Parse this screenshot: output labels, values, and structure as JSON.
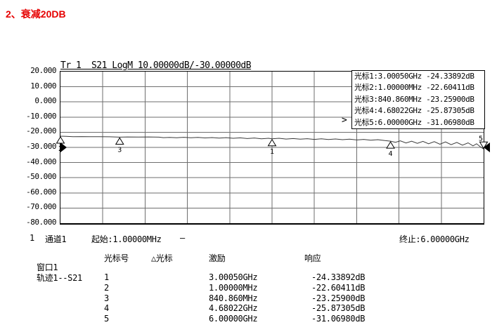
{
  "page_title": {
    "text": "2、衰减20DB",
    "color": "#e60000"
  },
  "trace_header": "Tr 1  S21 LogM 10.00000dB/-30.00000dB",
  "marker_readout": {
    "active_arrow": ">",
    "lines": [
      "光标1:3.00050GHz -24.33892dB",
      "光标2:1.00000MHz -22.60411dB",
      "光标3:840.860MHz -23.25900dB",
      "光标4:4.68022GHz -25.87305dB",
      "光标5:6.00000GHz -31.06980dB"
    ]
  },
  "status_bar": {
    "channel_index": "1",
    "channel_label": "通道1",
    "start_label": "起始:1.00000MHz",
    "dash": "—",
    "stop_label": "终止:6.00000GHz"
  },
  "marker_table": {
    "headers": {
      "num": "光标号",
      "delta": "△光标",
      "stimulus": "激励",
      "response": "响应"
    },
    "window_label": "窗口1",
    "trace_label": "轨迹1--S21",
    "rows": [
      {
        "num": "1",
        "stimulus": "3.00050GHz",
        "response": "-24.33892dB"
      },
      {
        "num": "2",
        "stimulus": "1.00000MHz",
        "response": "-22.60411dB"
      },
      {
        "num": "3",
        "stimulus": "840.860MHz",
        "response": "-23.25900dB"
      },
      {
        "num": "4",
        "stimulus": "4.68022GHz",
        "response": "-25.87305dB"
      },
      {
        "num": "5",
        "stimulus": "6.00000GHz",
        "response": "-31.06980dB"
      }
    ]
  },
  "chart_data": {
    "type": "line",
    "title": "Tr 1 S21 LogM 10.00000dB/-30.00000dB",
    "trace_name": "S21",
    "format": "LogM",
    "scale_per_div_db": 10.0,
    "ref_level_db": -30,
    "x_unit": "GHz",
    "x_range": [
      0.001,
      6.0
    ],
    "x_start_label": "起始:1.00000MHz",
    "x_stop_label": "终止:6.00000GHz",
    "y_unit": "dB",
    "y_range": [
      -80,
      20
    ],
    "y_tick_labels": [
      "20.000",
      "10.000",
      "0.000",
      "-10.000",
      "-20.000",
      "-30.000",
      "-40.000",
      "-50.000",
      "-60.000",
      "-70.000",
      "-80.000"
    ],
    "grid": {
      "x_divisions": 10,
      "y_divisions": 10,
      "legend": "none"
    },
    "markers": [
      {
        "id": "1",
        "x_ghz": 3.0005,
        "db": -24.33892,
        "shape": "up"
      },
      {
        "id": "2",
        "x_ghz": 0.001,
        "db": -22.60411,
        "shape": "up"
      },
      {
        "id": "3",
        "x_ghz": 0.84086,
        "db": -23.259,
        "shape": "up"
      },
      {
        "id": "4",
        "x_ghz": 4.68022,
        "db": -25.87305,
        "shape": "up"
      },
      {
        "id": "5",
        "x_ghz": 6.0,
        "db": -31.0698,
        "shape": "down-active"
      }
    ],
    "series": [
      {
        "name": "S21",
        "points": [
          [
            0.001,
            -22.6
          ],
          [
            0.08,
            -22.75
          ],
          [
            0.18,
            -22.9
          ],
          [
            0.3,
            -22.85
          ],
          [
            0.42,
            -22.95
          ],
          [
            0.55,
            -22.9
          ],
          [
            0.7,
            -23.0
          ],
          [
            0.84086,
            -23.26
          ],
          [
            0.95,
            -23.1
          ],
          [
            1.1,
            -23.2
          ],
          [
            1.25,
            -23.1
          ],
          [
            1.4,
            -23.25
          ],
          [
            1.46,
            -23.55
          ],
          [
            1.55,
            -23.4
          ],
          [
            1.65,
            -23.6
          ],
          [
            1.75,
            -23.35
          ],
          [
            1.85,
            -23.65
          ],
          [
            1.95,
            -23.4
          ],
          [
            2.05,
            -23.75
          ],
          [
            2.15,
            -23.5
          ],
          [
            2.25,
            -23.9
          ],
          [
            2.35,
            -23.55
          ],
          [
            2.45,
            -24.0
          ],
          [
            2.55,
            -23.7
          ],
          [
            2.65,
            -24.15
          ],
          [
            2.75,
            -23.8
          ],
          [
            2.85,
            -24.3
          ],
          [
            2.95,
            -24.0
          ],
          [
            3.0005,
            -24.34
          ],
          [
            3.1,
            -24.0
          ],
          [
            3.2,
            -24.5
          ],
          [
            3.3,
            -24.15
          ],
          [
            3.4,
            -24.6
          ],
          [
            3.5,
            -24.25
          ],
          [
            3.6,
            -24.7
          ],
          [
            3.7,
            -24.35
          ],
          [
            3.8,
            -24.8
          ],
          [
            3.9,
            -24.45
          ],
          [
            4.0,
            -24.9
          ],
          [
            4.1,
            -24.55
          ],
          [
            4.2,
            -25.1
          ],
          [
            4.3,
            -24.7
          ],
          [
            4.4,
            -25.3
          ],
          [
            4.5,
            -24.9
          ],
          [
            4.6,
            -25.5
          ],
          [
            4.68022,
            -25.87
          ],
          [
            4.75,
            -26.6
          ],
          [
            4.82,
            -25.7
          ],
          [
            4.9,
            -27.1
          ],
          [
            4.98,
            -25.9
          ],
          [
            5.06,
            -27.3
          ],
          [
            5.14,
            -26.0
          ],
          [
            5.22,
            -27.6
          ],
          [
            5.3,
            -26.2
          ],
          [
            5.38,
            -27.9
          ],
          [
            5.46,
            -26.4
          ],
          [
            5.54,
            -28.2
          ],
          [
            5.62,
            -26.7
          ],
          [
            5.7,
            -28.5
          ],
          [
            5.78,
            -27.0
          ],
          [
            5.85,
            -29.0
          ],
          [
            5.9,
            -27.6
          ],
          [
            5.95,
            -29.5
          ],
          [
            6.0,
            -31.07
          ]
        ]
      }
    ]
  }
}
